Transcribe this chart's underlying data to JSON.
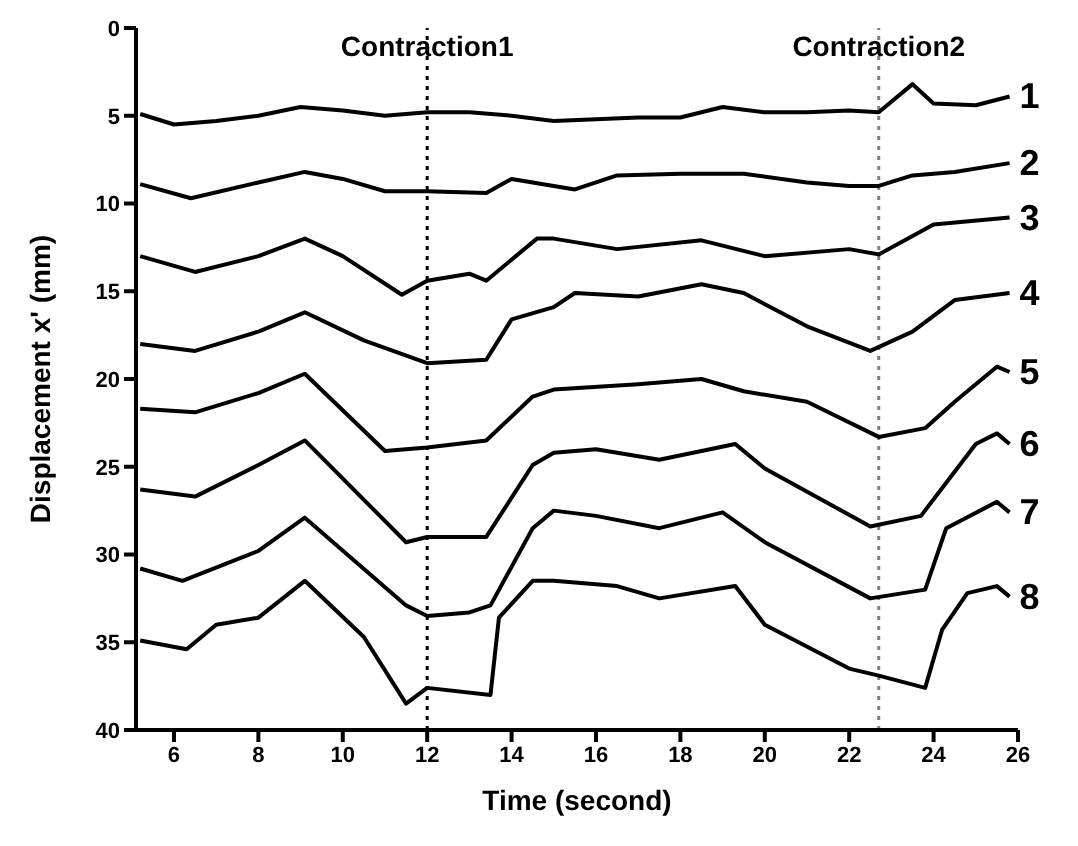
{
  "chart_data": {
    "type": "line",
    "xlabel": "Time (second)",
    "ylabel": "Displacement x' (mm)",
    "xlim": [
      5.1,
      26
    ],
    "xticks": [
      6,
      8,
      10,
      12,
      14,
      16,
      18,
      20,
      22,
      24,
      26
    ],
    "ylim": [
      40,
      0
    ],
    "yticks": [
      0,
      5,
      10,
      15,
      20,
      25,
      30,
      35,
      40
    ],
    "grid": false,
    "legend": false,
    "marker": "none",
    "line_style": "solid",
    "ref_lines": [
      {
        "axis": "x",
        "value": 12,
        "label": "Contraction1",
        "line_style": "dotted",
        "color": "#000000"
      },
      {
        "axis": "x",
        "value": 22.7,
        "label": "Contraction2",
        "line_style": "dotted",
        "color": "#808080"
      }
    ],
    "series": [
      {
        "name": "1",
        "color": "#000000",
        "x": [
          5.2,
          6,
          7,
          8,
          9,
          10,
          11,
          12,
          13,
          14,
          15,
          16,
          17,
          18,
          19,
          20,
          21,
          22,
          22.7,
          23.5,
          24,
          25,
          25.8
        ],
        "values": [
          4.9,
          5.5,
          5.3,
          5,
          4.5,
          4.7,
          5,
          4.8,
          4.8,
          5,
          5.3,
          5.2,
          5.1,
          5.1,
          4.5,
          4.8,
          4.8,
          4.7,
          4.8,
          3.2,
          4.3,
          4.4,
          3.9
        ]
      },
      {
        "name": "2",
        "color": "#000000",
        "x": [
          5.2,
          6.4,
          8,
          9.1,
          10,
          11,
          12,
          13.4,
          14,
          15.5,
          16.5,
          18,
          19.5,
          21,
          22,
          22.7,
          23.5,
          24.5,
          25.8
        ],
        "values": [
          8.9,
          9.7,
          8.8,
          8.2,
          8.6,
          9.3,
          9.3,
          9.4,
          8.6,
          9.2,
          8.4,
          8.3,
          8.3,
          8.8,
          9,
          9,
          8.4,
          8.2,
          7.7
        ]
      },
      {
        "name": "3",
        "color": "#000000",
        "x": [
          5.2,
          6.5,
          8,
          9.1,
          10,
          11.4,
          12,
          13,
          13.4,
          14.6,
          15,
          16.5,
          18.5,
          20,
          22,
          22.7,
          24,
          25.8
        ],
        "values": [
          13,
          13.9,
          13,
          12,
          13,
          15.2,
          14.4,
          14,
          14.4,
          12,
          12,
          12.6,
          12.1,
          13,
          12.6,
          12.9,
          11.2,
          10.8
        ]
      },
      {
        "name": "4",
        "color": "#000000",
        "x": [
          5.2,
          6.5,
          8,
          9.1,
          10.5,
          12,
          13.4,
          14,
          15,
          15.5,
          17,
          18.5,
          19.5,
          21,
          22.5,
          23.5,
          24.5,
          25.8
        ],
        "values": [
          18,
          18.4,
          17.3,
          16.2,
          17.8,
          19.1,
          18.9,
          16.6,
          15.9,
          15.1,
          15.3,
          14.6,
          15.1,
          17,
          18.4,
          17.3,
          15.5,
          15.1
        ]
      },
      {
        "name": "5",
        "color": "#000000",
        "x": [
          5.2,
          6.5,
          8,
          9.1,
          11,
          12,
          13.4,
          14.5,
          15,
          17,
          18.5,
          19.5,
          21,
          22.7,
          23.8,
          24.5,
          25.5,
          25.8
        ],
        "values": [
          21.7,
          21.9,
          20.8,
          19.7,
          24.1,
          23.9,
          23.5,
          21,
          20.6,
          20.3,
          20,
          20.7,
          21.3,
          23.3,
          22.8,
          21.3,
          19.3,
          19.6
        ]
      },
      {
        "name": "6",
        "color": "#000000",
        "x": [
          5.2,
          6.5,
          8,
          9.1,
          11.5,
          12,
          13.4,
          14.5,
          15,
          16,
          17.5,
          19.3,
          20,
          22.5,
          23.7,
          25,
          25.5,
          25.8
        ],
        "values": [
          26.3,
          26.7,
          24.9,
          23.5,
          29.3,
          29,
          29,
          24.9,
          24.2,
          24,
          24.6,
          23.7,
          25.1,
          28.4,
          27.8,
          23.7,
          23.1,
          23.7
        ]
      },
      {
        "name": "7",
        "color": "#000000",
        "x": [
          5.2,
          6.2,
          8,
          9.1,
          11.5,
          12,
          13,
          13.5,
          14.5,
          15,
          16,
          17.5,
          19,
          20,
          22.5,
          23.8,
          24.3,
          25.5,
          25.8
        ],
        "values": [
          30.8,
          31.5,
          29.8,
          27.9,
          32.9,
          33.5,
          33.3,
          32.9,
          28.5,
          27.5,
          27.8,
          28.5,
          27.6,
          29.3,
          32.5,
          32,
          28.5,
          27,
          27.6
        ]
      },
      {
        "name": "8",
        "color": "#000000",
        "x": [
          5.2,
          6.3,
          7,
          8,
          9.1,
          10.5,
          11.5,
          12,
          13.5,
          13.7,
          14.5,
          15,
          16.5,
          17.5,
          19.3,
          20,
          22,
          22.7,
          23.8,
          24.2,
          24.8,
          25.5,
          25.8
        ],
        "values": [
          34.9,
          35.4,
          34,
          33.6,
          31.5,
          34.7,
          38.5,
          37.6,
          38,
          33.6,
          31.5,
          31.5,
          31.8,
          32.5,
          31.8,
          34,
          36.5,
          36.9,
          37.6,
          34.3,
          32.2,
          31.8,
          32.4
        ]
      }
    ]
  }
}
